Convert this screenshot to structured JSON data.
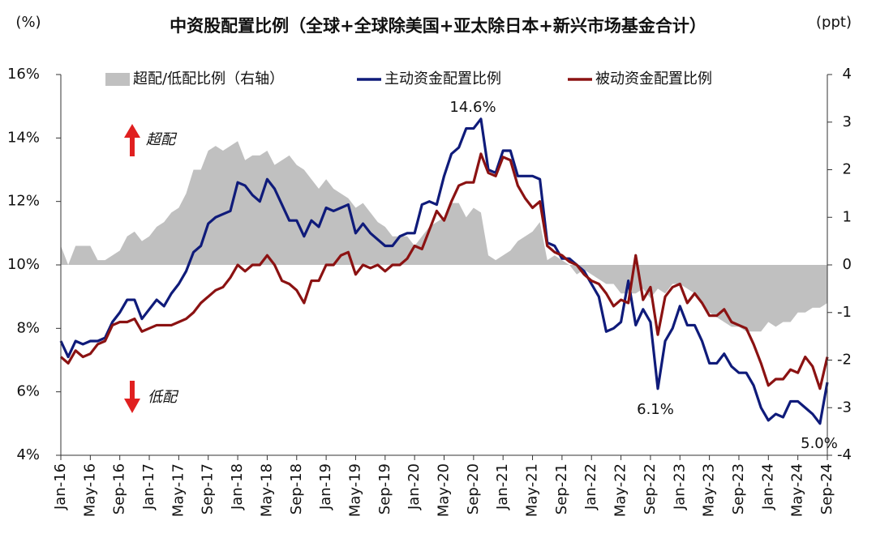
{
  "chart_data": {
    "type": "line",
    "title": "中资股配置比例（全球+全球除美国+亚太除日本+新兴市场基金合计）",
    "y_unit": "(%)",
    "y2_unit": "(ppt)",
    "categories": [
      "Jan-16",
      null,
      null,
      null,
      "May-16",
      null,
      null,
      null,
      "Sep-16",
      null,
      null,
      null,
      "Jan-17",
      null,
      null,
      null,
      "May-17",
      null,
      null,
      null,
      "Sep-17",
      null,
      null,
      null,
      "Jan-18",
      null,
      null,
      null,
      "May-18",
      null,
      null,
      null,
      "Sep-18",
      null,
      null,
      null,
      "Jan-19",
      null,
      null,
      null,
      "May-19",
      null,
      null,
      null,
      "Sep-19",
      null,
      null,
      null,
      "Jan-20",
      null,
      null,
      null,
      "May-20",
      null,
      null,
      null,
      "Sep-20",
      null,
      null,
      null,
      "Jan-21",
      null,
      null,
      null,
      "May-21",
      null,
      null,
      null,
      "Sep-21",
      null,
      null,
      null,
      "Jan-22",
      null,
      null,
      null,
      "May-22",
      null,
      null,
      null,
      "Sep-22",
      null,
      null,
      null,
      "Jan-23",
      null,
      null,
      null,
      "May-23",
      null,
      null,
      null,
      "Sep-23",
      null,
      null,
      null,
      "Jan-24",
      null,
      null,
      null,
      "May-24",
      null,
      null,
      null,
      "Sep-24"
    ],
    "series": [
      {
        "name": "超配/低配比例（右轴）",
        "color": "#c0c0c0",
        "axis": "y2",
        "kind": "area",
        "values": [
          0.4,
          0.0,
          0.4,
          0.4,
          0.4,
          0.1,
          0.1,
          0.2,
          0.3,
          0.6,
          0.7,
          0.5,
          0.6,
          0.8,
          0.9,
          1.1,
          1.2,
          1.5,
          2.0,
          2.0,
          2.4,
          2.5,
          2.4,
          2.5,
          2.6,
          2.2,
          2.3,
          2.3,
          2.4,
          2.1,
          2.2,
          2.3,
          2.1,
          2.0,
          1.8,
          1.6,
          1.8,
          1.6,
          1.5,
          1.4,
          1.2,
          1.3,
          1.1,
          0.9,
          0.8,
          0.6,
          0.6,
          0.6,
          0.4,
          0.6,
          0.8,
          0.9,
          1.0,
          1.3,
          1.3,
          1.0,
          1.2,
          1.1,
          0.2,
          0.1,
          0.2,
          0.3,
          0.5,
          0.6,
          0.7,
          0.9,
          0.1,
          0.2,
          0.1,
          0.0,
          -0.2,
          -0.1,
          -0.2,
          -0.3,
          -0.4,
          -0.4,
          -0.6,
          -0.6,
          -0.6,
          -0.5,
          -0.7,
          -0.5,
          -0.6,
          -0.4,
          -0.4,
          -0.5,
          -0.6,
          -0.8,
          -1.0,
          -1.1,
          -1.2,
          -1.3,
          -1.3,
          -1.4,
          -1.4,
          -1.4,
          -1.2,
          -1.3,
          -1.2,
          -1.2,
          -1.0,
          -1.0,
          -0.9,
          -0.9,
          -0.8
        ]
      },
      {
        "name": "主动资金配置比例",
        "color": "#0f1b7a",
        "values": [
          7.6,
          7.1,
          7.6,
          7.5,
          7.6,
          7.6,
          7.7,
          8.2,
          8.5,
          8.9,
          8.9,
          8.3,
          8.6,
          8.9,
          8.7,
          9.1,
          9.4,
          9.8,
          10.4,
          10.6,
          11.3,
          11.5,
          11.6,
          11.7,
          12.6,
          12.5,
          12.2,
          12.0,
          12.7,
          12.4,
          11.9,
          11.4,
          11.4,
          10.9,
          11.4,
          11.2,
          11.8,
          11.7,
          11.8,
          11.9,
          11.0,
          11.3,
          11.0,
          10.8,
          10.6,
          10.6,
          10.9,
          11.0,
          11.0,
          11.9,
          12.0,
          11.9,
          12.8,
          13.5,
          13.7,
          14.3,
          14.3,
          14.6,
          13.0,
          12.9,
          13.6,
          13.6,
          12.8,
          12.8,
          12.8,
          12.7,
          10.7,
          10.6,
          10.2,
          10.2,
          10.0,
          9.8,
          9.4,
          9.0,
          7.9,
          8.0,
          8.2,
          9.5,
          8.1,
          8.6,
          8.2,
          6.1,
          7.6,
          8.0,
          8.7,
          8.1,
          8.1,
          7.6,
          6.9,
          6.9,
          7.2,
          6.8,
          6.6,
          6.6,
          6.2,
          5.5,
          5.1,
          5.3,
          5.2,
          5.7,
          5.7,
          5.5,
          5.3,
          5.0,
          6.3
        ]
      },
      {
        "name": "被动资金配置比例",
        "color": "#8b1212",
        "values": [
          7.1,
          6.9,
          7.3,
          7.1,
          7.2,
          7.5,
          7.6,
          8.1,
          8.2,
          8.2,
          8.3,
          7.9,
          8.0,
          8.1,
          8.1,
          8.1,
          8.2,
          8.3,
          8.5,
          8.8,
          9.0,
          9.2,
          9.3,
          9.6,
          10.0,
          9.8,
          10.0,
          10.0,
          10.3,
          10.0,
          9.5,
          9.4,
          9.2,
          8.8,
          9.5,
          9.5,
          10.0,
          10.0,
          10.3,
          10.4,
          9.7,
          10.0,
          9.9,
          10.0,
          9.8,
          10.0,
          10.0,
          10.2,
          10.6,
          10.5,
          11.1,
          11.7,
          11.4,
          12.0,
          12.5,
          12.6,
          12.6,
          13.5,
          12.9,
          12.8,
          13.4,
          13.3,
          12.5,
          12.1,
          11.8,
          12.0,
          10.6,
          10.4,
          10.3,
          10.1,
          10.0,
          9.7,
          9.5,
          9.4,
          9.1,
          8.7,
          8.9,
          8.8,
          10.3,
          8.9,
          9.3,
          7.8,
          9.0,
          9.3,
          9.4,
          8.8,
          9.1,
          8.8,
          8.4,
          8.4,
          8.6,
          8.2,
          8.1,
          8.0,
          7.5,
          6.9,
          6.2,
          6.4,
          6.4,
          6.7,
          6.6,
          7.1,
          6.8,
          6.1,
          7.1
        ]
      }
    ],
    "ylim": [
      4,
      16
    ],
    "yticks": [
      {
        "value": 4,
        "label": "4%"
      },
      {
        "value": 6,
        "label": "6%"
      },
      {
        "value": 8,
        "label": "8%"
      },
      {
        "value": 10,
        "label": "10%"
      },
      {
        "value": 12,
        "label": "12%"
      },
      {
        "value": 14,
        "label": "14%"
      },
      {
        "value": 16,
        "label": "16%"
      }
    ],
    "y2lim": [
      -4,
      4
    ],
    "y2ticks": [
      -4,
      -3,
      -2,
      -1,
      0,
      1,
      2,
      3,
      4
    ],
    "annotations": [
      {
        "text": "14.6%"
      },
      {
        "text": "6.1%"
      },
      {
        "text": "5.0%"
      },
      {
        "text": "超配"
      },
      {
        "text": "低配"
      }
    ],
    "legend": "top"
  }
}
